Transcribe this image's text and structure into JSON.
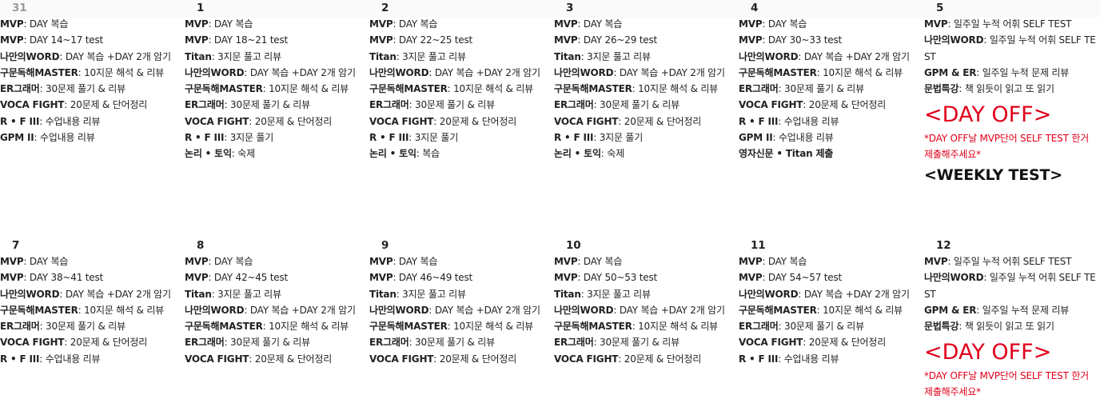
{
  "calendar": {
    "weeks": [
      {
        "days": [
          {
            "date": "31",
            "muted": true,
            "lines": [
              [
                "MVP",
                ": DAY 복습"
              ],
              [
                "MVP",
                ": DAY 14~17 test"
              ],
              [
                "나만의WORD",
                ": DAY 복습 +DAY 2개 암기"
              ],
              [
                "구문독해MASTER",
                ": 10지문 해석 & 리뷰"
              ],
              [
                "ER그래머",
                ": 30문제 풀기 & 리뷰"
              ],
              [
                "VOCA FIGHT",
                ": 20문제 & 단어정리"
              ],
              [
                "R • F III",
                ": 수업내용 리뷰"
              ],
              [
                "GPM II",
                ": 수업내용 리뷰"
              ]
            ]
          },
          {
            "date": "1",
            "lines": [
              [
                "MVP",
                ": DAY 복습"
              ],
              [
                "MVP",
                ": DAY 18~21 test"
              ],
              [
                "Titan",
                ": 3지문 풀고 리뷰"
              ],
              [
                "나만의WORD",
                ": DAY 복습 +DAY 2개 암기"
              ],
              [
                "구문독해MASTER",
                ": 10지문 해석 & 리뷰"
              ],
              [
                "ER그래머",
                ": 30문제 풀기 & 리뷰"
              ],
              [
                "VOCA FIGHT",
                ": 20문제 & 단어정리"
              ],
              [
                "R • F III",
                ": 3지문 풀기"
              ],
              [
                "논리 • 토익",
                ": 숙제"
              ]
            ]
          },
          {
            "date": "2",
            "lines": [
              [
                "MVP",
                ": DAY 복습"
              ],
              [
                "MVP",
                ": DAY 22~25 test"
              ],
              [
                "Titan",
                ": 3지문 풀고 리뷰"
              ],
              [
                "나만의WORD",
                ": DAY 복습 +DAY 2개 암기"
              ],
              [
                "구문독해MASTER",
                ": 10지문 해석 & 리뷰"
              ],
              [
                "ER그래머",
                ": 30문제 풀기 & 리뷰"
              ],
              [
                "VOCA FIGHT",
                ": 20문제 & 단어정리"
              ],
              [
                "R • F III",
                ": 3지문 풀기"
              ],
              [
                "논리 • 토익",
                ": 복습"
              ]
            ]
          },
          {
            "date": "3",
            "lines": [
              [
                "MVP",
                ": DAY 복습"
              ],
              [
                "MVP",
                ": DAY 26~29 test"
              ],
              [
                "Titan",
                ": 3지문 풀고 리뷰"
              ],
              [
                "나만의WORD",
                ": DAY 복습 +DAY 2개 암기"
              ],
              [
                "구문독해MASTER",
                ": 10지문 해석 & 리뷰"
              ],
              [
                "ER그래머",
                ": 30문제 풀기 & 리뷰"
              ],
              [
                "VOCA FIGHT",
                ": 20문제 & 단어정리"
              ],
              [
                "R • F III",
                ": 3지문 풀기"
              ],
              [
                "논리 • 토익",
                ": 숙제"
              ]
            ]
          },
          {
            "date": "4",
            "lines": [
              [
                "MVP",
                ": DAY 복습"
              ],
              [
                "MVP",
                ": DAY 30~33 test"
              ],
              [
                "나만의WORD",
                ": DAY 복습 +DAY 2개 암기"
              ],
              [
                "구문독해MASTER",
                ": 10지문 해석 & 리뷰"
              ],
              [
                "ER그래머",
                ": 30문제 풀기 & 리뷰"
              ],
              [
                "VOCA FIGHT",
                ": 20문제 & 단어정리"
              ],
              [
                "R • F III",
                ": 수업내용 리뷰"
              ],
              [
                "GPM II",
                ": 수업내용 리뷰"
              ],
              [
                "영자신문 • Titan 제출",
                ""
              ]
            ]
          },
          {
            "date": "5",
            "lines": [
              [
                "MVP",
                ": 일주일 누적 어휘 SELF TEST"
              ],
              [
                "나만의WORD",
                ": 일주일 누적 어휘 SELF TEST"
              ],
              [
                "GPM & ER",
                ": 일주일 누적 문제 리뷰"
              ],
              [
                "문법특강",
                ": 책 읽듯이 읽고 또 읽기"
              ]
            ],
            "dayoff": "<DAY OFF>",
            "note": "*DAY OFF날 MVP단어 SELF TEST 한거 제출해주세요*",
            "weekly": "<WEEKLY TEST>"
          }
        ]
      },
      {
        "days": [
          {
            "date": "7",
            "lines": [
              [
                "MVP",
                ": DAY 복습"
              ],
              [
                "MVP",
                ": DAY 38~41 test"
              ],
              [
                "나만의WORD",
                ": DAY 복습 +DAY 2개 암기"
              ],
              [
                "구문독해MASTER",
                ": 10지문 해석 & 리뷰"
              ],
              [
                "ER그래머",
                ": 30문제 풀기 & 리뷰"
              ],
              [
                "VOCA FIGHT",
                ": 20문제 & 단어정리"
              ],
              [
                "R • F III",
                ": 수업내용 리뷰"
              ]
            ]
          },
          {
            "date": "8",
            "lines": [
              [
                "MVP",
                ": DAY 복습"
              ],
              [
                "MVP",
                ": DAY 42~45 test"
              ],
              [
                "Titan",
                ": 3지문 풀고 리뷰"
              ],
              [
                "나만의WORD",
                ": DAY 복습 +DAY 2개 암기"
              ],
              [
                "구문독해MASTER",
                ": 10지문 해석 & 리뷰"
              ],
              [
                "ER그래머",
                ": 30문제 풀기 & 리뷰"
              ],
              [
                "VOCA FIGHT",
                ": 20문제 & 단어정리"
              ]
            ]
          },
          {
            "date": "9",
            "lines": [
              [
                "MVP",
                ": DAY 복습"
              ],
              [
                "MVP",
                ": DAY 46~49 test"
              ],
              [
                "Titan",
                ": 3지문 풀고 리뷰"
              ],
              [
                "나만의WORD",
                ": DAY 복습 +DAY 2개 암기"
              ],
              [
                "구문독해MASTER",
                ": 10지문 해석 & 리뷰"
              ],
              [
                "ER그래머",
                ": 30문제 풀기 & 리뷰"
              ],
              [
                "VOCA FIGHT",
                ": 20문제 & 단어정리"
              ]
            ]
          },
          {
            "date": "10",
            "lines": [
              [
                "MVP",
                ": DAY 복습"
              ],
              [
                "MVP",
                ": DAY 50~53 test"
              ],
              [
                "Titan",
                ": 3지문 풀고 리뷰"
              ],
              [
                "나만의WORD",
                ": DAY 복습 +DAY 2개 암기"
              ],
              [
                "구문독해MASTER",
                ": 10지문 해석 & 리뷰"
              ],
              [
                "ER그래머",
                ": 30문제 풀기 & 리뷰"
              ],
              [
                "VOCA FIGHT",
                ": 20문제 & 단어정리"
              ]
            ]
          },
          {
            "date": "11",
            "lines": [
              [
                "MVP",
                ": DAY 복습"
              ],
              [
                "MVP",
                ": DAY 54~57 test"
              ],
              [
                "나만의WORD",
                ": DAY 복습 +DAY 2개 암기"
              ],
              [
                "구문독해MASTER",
                ": 10지문 해석 & 리뷰"
              ],
              [
                "ER그래머",
                ": 30문제 풀기 & 리뷰"
              ],
              [
                "VOCA FIGHT",
                ": 20문제 & 단어정리"
              ],
              [
                "R • F III",
                ": 수업내용 리뷰"
              ]
            ]
          },
          {
            "date": "12",
            "lines": [
              [
                "MVP",
                ": 일주일 누적 어휘 SELF TEST"
              ],
              [
                "나만의WORD",
                ": 일주일 누적 어휘 SELF TEST"
              ],
              [
                "GPM & ER",
                ": 일주일 누적 문제 리뷰"
              ],
              [
                "문법특강",
                ": 책 읽듯이 읽고 또 읽기"
              ]
            ],
            "dayoff": "<DAY OFF>",
            "note": "*DAY OFF날 MVP단어 SELF TEST 한거 제출해주세요*"
          }
        ]
      }
    ]
  }
}
